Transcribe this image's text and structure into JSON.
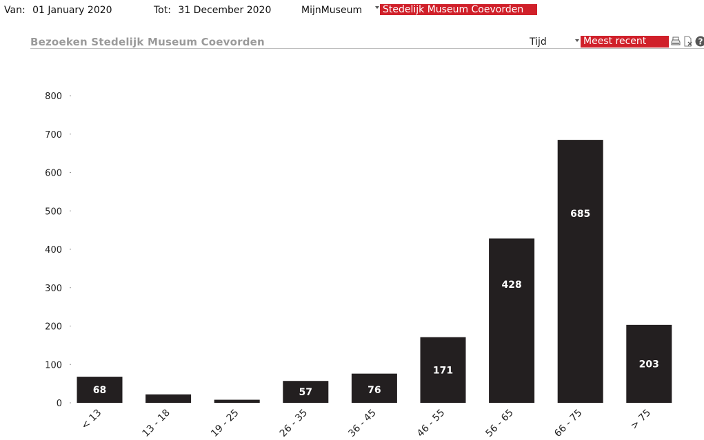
{
  "filters": {
    "from_label": "Van:",
    "from_value": "01 January 2020",
    "to_label": "Tot:",
    "to_value": "31 December 2020",
    "museum_label": "MijnMuseum",
    "museum_selected": "Stedelijk Museum Coevorden"
  },
  "panel": {
    "title": "Bezoeken Stedelijk Museum Coevorden",
    "time_label": "Tijd",
    "time_selected": "Meest recent",
    "icons": [
      "save-icon",
      "export-icon",
      "help-icon"
    ]
  },
  "colors": {
    "accent": "#d0202a",
    "bar": "#231f20",
    "title_gray": "#9a9a9a"
  },
  "chart_data": {
    "type": "bar",
    "categories": [
      "< 13",
      "13 - 18",
      "19 - 25",
      "26 - 35",
      "36 - 45",
      "46 - 55",
      "56 - 65",
      "66 - 75",
      "> 75"
    ],
    "values": [
      68,
      22,
      8,
      57,
      76,
      171,
      428,
      685,
      203
    ],
    "data_labels": [
      "68",
      "",
      "",
      "57",
      "76",
      "171",
      "428",
      "685",
      "203"
    ],
    "yticks": [
      "0",
      "100",
      "200",
      "300",
      "400",
      "500",
      "600",
      "700",
      "800"
    ],
    "ylim": [
      0,
      800
    ],
    "grid": false,
    "legend": "none"
  }
}
